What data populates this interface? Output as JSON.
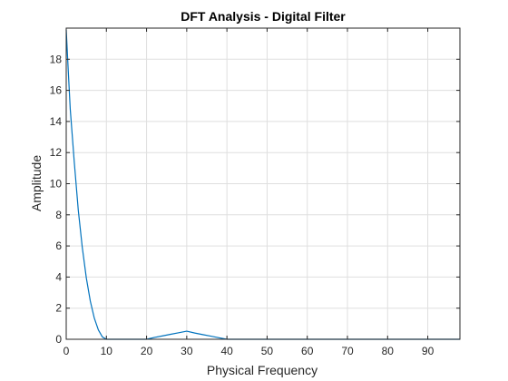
{
  "chart_data": {
    "type": "line",
    "title": "DFT Analysis - Digital Filter",
    "xlabel": "Physical Frequency",
    "ylabel": "Amplitude",
    "xlim": [
      0,
      98
    ],
    "ylim": [
      0,
      20
    ],
    "xticks": [
      0,
      10,
      20,
      30,
      40,
      50,
      60,
      70,
      80,
      90
    ],
    "yticks": [
      0,
      2,
      4,
      6,
      8,
      10,
      12,
      14,
      16,
      18
    ],
    "grid": true,
    "legend": "none",
    "line_color": "#0072BD",
    "series": [
      {
        "x": [
          0,
          0.5,
          1,
          2,
          3,
          4,
          5,
          6,
          7,
          8,
          9,
          10,
          12,
          15,
          18,
          20,
          22,
          24,
          26,
          28,
          30,
          32,
          34,
          36,
          38,
          40,
          45,
          50,
          60,
          70,
          80,
          90,
          98
        ],
        "values": [
          19.9,
          17.3,
          14.8,
          11.4,
          8.3,
          5.9,
          3.95,
          2.45,
          1.35,
          0.6,
          0.15,
          0.0,
          0.0,
          0.0,
          0.0,
          0.0,
          0.12,
          0.22,
          0.32,
          0.42,
          0.52,
          0.4,
          0.3,
          0.2,
          0.1,
          0.0,
          0.0,
          0.0,
          0.0,
          0.0,
          0.0,
          0.0,
          0.0
        ]
      }
    ]
  }
}
